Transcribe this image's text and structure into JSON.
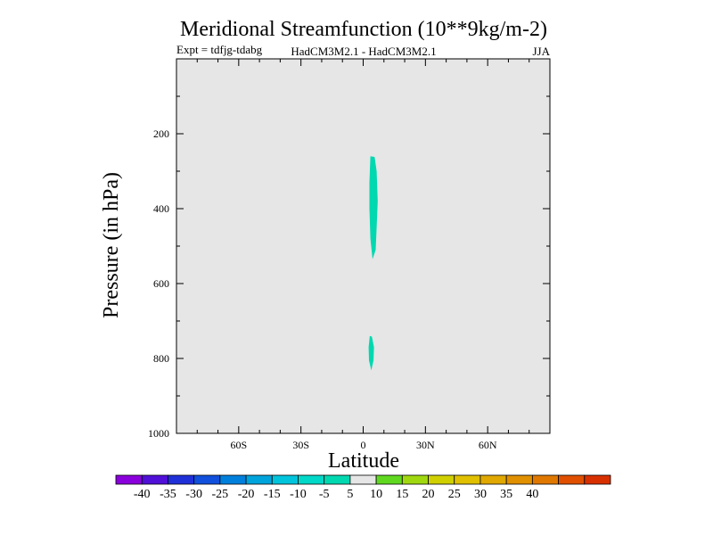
{
  "chart_data": {
    "type": "contour",
    "title": "Meridional Streamfunction (10**9kg/m-2)",
    "subtitle_left": "Expt = tdfjg-tdabg",
    "subtitle_center": "HadCM3M2.1 - HadCM3M2.1",
    "subtitle_right": "JJA",
    "xlabel": "Latitude",
    "ylabel": "Pressure (in hPa)",
    "xlim": [
      -90,
      90
    ],
    "ylim": [
      1000,
      0
    ],
    "x_ticks": [
      {
        "value": -60,
        "label": "60S"
      },
      {
        "value": -30,
        "label": "30S"
      },
      {
        "value": 0,
        "label": "0"
      },
      {
        "value": 30,
        "label": "30N"
      },
      {
        "value": 60,
        "label": "60N"
      }
    ],
    "y_ticks": [
      {
        "value": 200,
        "label": "200"
      },
      {
        "value": 400,
        "label": "400"
      },
      {
        "value": 600,
        "label": "600"
      },
      {
        "value": 800,
        "label": "800"
      },
      {
        "value": 1000,
        "label": "1000"
      }
    ],
    "background_color": "#e6e6e6",
    "regions": [
      {
        "name": "upper-cell",
        "level": -5,
        "color": "#00d8b0",
        "outline": [
          [
            3.5,
            260
          ],
          [
            5.5,
            262
          ],
          [
            6.5,
            300
          ],
          [
            7,
            380
          ],
          [
            6.5,
            450
          ],
          [
            6,
            510
          ],
          [
            4.5,
            535
          ],
          [
            3.5,
            480
          ],
          [
            3,
            400
          ],
          [
            3,
            330
          ]
        ]
      },
      {
        "name": "lower-cell",
        "level": -5,
        "color": "#00d8b0",
        "outline": [
          [
            3.2,
            740
          ],
          [
            4.2,
            742
          ],
          [
            5.2,
            770
          ],
          [
            5,
            805
          ],
          [
            3.9,
            832
          ],
          [
            2.8,
            805
          ],
          [
            2.6,
            770
          ]
        ]
      }
    ],
    "colorbar": {
      "colors": [
        "#8a00dc",
        "#5010d8",
        "#2030d8",
        "#1050dc",
        "#0080dc",
        "#00a4dc",
        "#00c4dc",
        "#00d8c8",
        "#00d8b0",
        "#e6e6e6",
        "#60d820",
        "#a0d810",
        "#d0d000",
        "#e0c000",
        "#e0a800",
        "#e09000",
        "#e07800",
        "#e05000",
        "#d83000"
      ],
      "labels": [
        "-40",
        "-35",
        "-30",
        "-25",
        "-20",
        "-15",
        "-10",
        "-5",
        "5",
        "10",
        "15",
        "20",
        "25",
        "30",
        "35",
        "40"
      ]
    }
  }
}
